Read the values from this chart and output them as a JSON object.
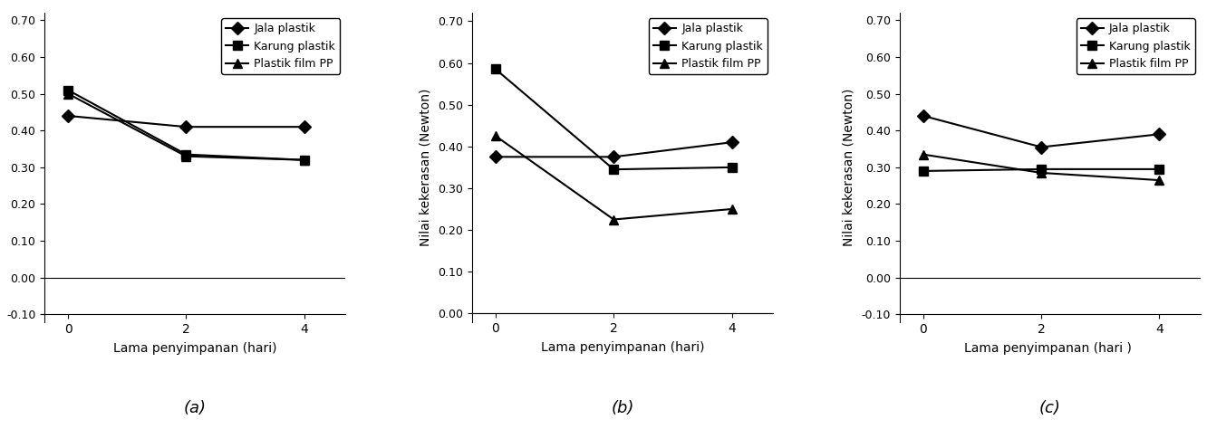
{
  "subplots": [
    {
      "label": "(a)",
      "xlabel": "Lama penyimpanan (hari)",
      "ylabel": "",
      "x": [
        0,
        2,
        4
      ],
      "series": [
        {
          "name": "Jala plastik",
          "marker": "D",
          "values": [
            0.44,
            0.41,
            0.41
          ]
        },
        {
          "name": "Karung plastik",
          "marker": "s",
          "values": [
            0.51,
            0.335,
            0.32
          ]
        },
        {
          "name": "Plastik film PP",
          "marker": "^",
          "values": [
            0.5,
            0.33,
            0.32
          ]
        }
      ],
      "ylim": [
        -0.12,
        0.72
      ],
      "yticks": [
        -0.1,
        0.0,
        0.1,
        0.2,
        0.3,
        0.4,
        0.5,
        0.6,
        0.7
      ],
      "yticklabels": [
        "-0.10",
        "0.00",
        "0.10",
        "0.20",
        "0.30",
        "0.40",
        "0.50",
        "0.60",
        "0.70"
      ],
      "show_ylabel": false,
      "legend_loc": "upper right"
    },
    {
      "label": "(b)",
      "xlabel": "Lama penyimpanan (hari)",
      "ylabel": "Nilai kekerasan (Newton)",
      "x": [
        0,
        2,
        4
      ],
      "series": [
        {
          "name": "Jala plastik",
          "marker": "D",
          "values": [
            0.375,
            0.375,
            0.41
          ]
        },
        {
          "name": "Karung plastik",
          "marker": "s",
          "values": [
            0.585,
            0.345,
            0.35
          ]
        },
        {
          "name": "Plastik film PP",
          "marker": "^",
          "values": [
            0.425,
            0.225,
            0.25
          ]
        }
      ],
      "ylim": [
        -0.02,
        0.72
      ],
      "yticks": [
        0.0,
        0.1,
        0.2,
        0.3,
        0.4,
        0.5,
        0.6,
        0.7
      ],
      "yticklabels": [
        "0.00",
        "0.10",
        "0.20",
        "0.30",
        "0.40",
        "0.50",
        "0.60",
        "0.70"
      ],
      "show_ylabel": true,
      "legend_loc": "upper right"
    },
    {
      "label": "(c)",
      "xlabel": "Lama penyimpanan (hari ) ",
      "ylabel": "Nilai kekerasan (Newton)",
      "x": [
        0,
        2,
        4
      ],
      "series": [
        {
          "name": "Jala plastik",
          "marker": "D",
          "values": [
            0.44,
            0.355,
            0.39
          ]
        },
        {
          "name": "Karung plastik",
          "marker": "s",
          "values": [
            0.29,
            0.295,
            0.295
          ]
        },
        {
          "name": "Plastik film PP",
          "marker": "^",
          "values": [
            0.335,
            0.285,
            0.265
          ]
        }
      ],
      "ylim": [
        -0.12,
        0.72
      ],
      "yticks": [
        -0.1,
        0.0,
        0.1,
        0.2,
        0.3,
        0.4,
        0.5,
        0.6,
        0.7
      ],
      "yticklabels": [
        "-0.10",
        "0.00",
        "0.10",
        "0.20",
        "0.30",
        "0.40",
        "0.50",
        "0.60",
        "0.70"
      ],
      "show_ylabel": true,
      "legend_loc": "upper right"
    }
  ],
  "line_color": "#000000",
  "marker_size": 7,
  "linewidth": 1.5,
  "legend_fontsize": 9,
  "tick_fontsize": 9,
  "label_fontsize": 10,
  "sublabel_fontsize": 13,
  "figsize": [
    13.32,
    4.74
  ],
  "dpi": 100
}
